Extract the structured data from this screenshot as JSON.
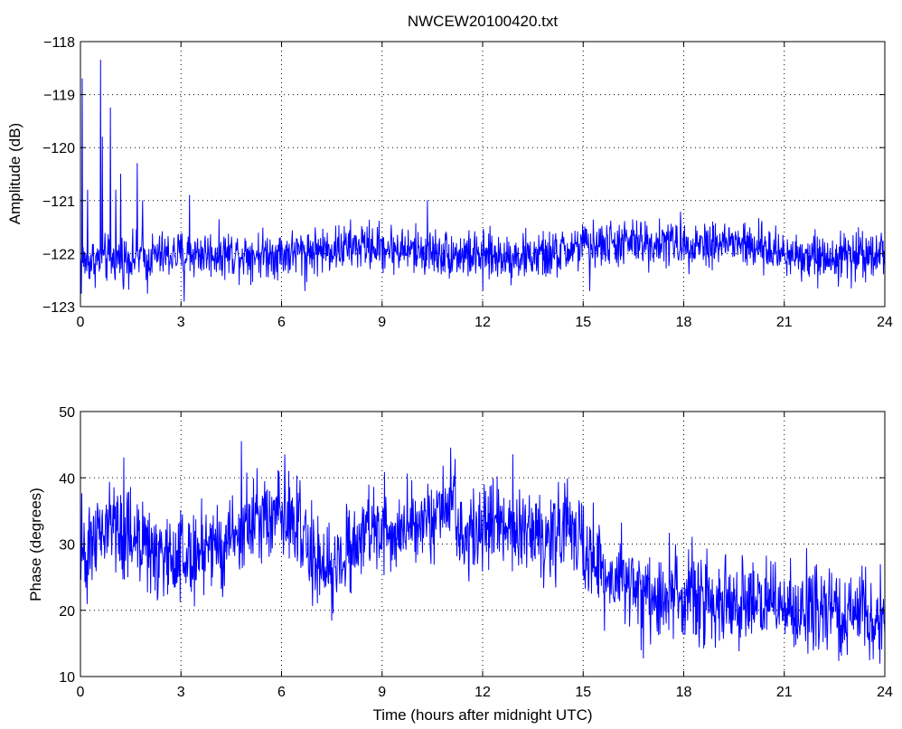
{
  "figure": {
    "background": "#ffffff",
    "line_color": "#0000ff"
  },
  "chart_data": [
    {
      "type": "line",
      "title": "NWCEW20100420.txt",
      "xlabel": "",
      "ylabel": "Amplitude (dB)",
      "xlim": [
        0,
        24
      ],
      "ylim": [
        -123,
        -118
      ],
      "xticks": [
        0,
        3,
        6,
        9,
        12,
        15,
        18,
        21,
        24
      ],
      "yticks": [
        -123,
        -122,
        -121,
        -120,
        -119,
        -118
      ],
      "ytick_labels": [
        "−123",
        "−122",
        "−121",
        "−120",
        "−119",
        "−118"
      ],
      "grid": true,
      "color": "#0000ff",
      "baseline_profile": {
        "x": [
          0,
          2,
          3.5,
          6,
          8.5,
          10,
          12,
          14,
          15,
          16.5,
          18,
          19.5,
          21,
          22.5,
          24
        ],
        "y": [
          -122.15,
          -122.05,
          -122.0,
          -122.0,
          -121.85,
          -121.95,
          -122.05,
          -122.05,
          -121.85,
          -121.8,
          -121.8,
          -121.8,
          -122.0,
          -122.05,
          -121.95
        ]
      },
      "noise_amplitude_db": 0.22,
      "spikes": [
        {
          "x": 0.05,
          "y": -118.7
        },
        {
          "x": 0.22,
          "y": -120.8
        },
        {
          "x": 0.6,
          "y": -118.35
        },
        {
          "x": 0.65,
          "y": -119.8
        },
        {
          "x": 0.9,
          "y": -119.25
        },
        {
          "x": 1.05,
          "y": -120.8
        },
        {
          "x": 1.2,
          "y": -120.5
        },
        {
          "x": 1.7,
          "y": -120.3
        },
        {
          "x": 1.85,
          "y": -121.0
        },
        {
          "x": 2.0,
          "y": -120.9
        },
        {
          "x": 3.25,
          "y": -120.9
        },
        {
          "x": 10.35,
          "y": -121.0
        }
      ],
      "dips": [
        {
          "x": 0.03,
          "y": -122.75
        },
        {
          "x": 1.3,
          "y": -122.6
        },
        {
          "x": 2.0,
          "y": -122.75
        },
        {
          "x": 3.1,
          "y": -122.9
        },
        {
          "x": 6.7,
          "y": -122.7
        },
        {
          "x": 12.0,
          "y": -122.7
        },
        {
          "x": 15.2,
          "y": -122.7
        },
        {
          "x": 22.0,
          "y": -122.65
        },
        {
          "x": 23.0,
          "y": -122.65
        }
      ]
    },
    {
      "type": "line",
      "title": "",
      "xlabel": "Time (hours after midnight UTC)",
      "ylabel": "Phase (degrees)",
      "xlim": [
        0,
        24
      ],
      "ylim": [
        10,
        50
      ],
      "xticks": [
        0,
        3,
        6,
        9,
        12,
        15,
        18,
        21,
        24
      ],
      "yticks": [
        10,
        20,
        30,
        40,
        50
      ],
      "ytick_labels": [
        "10",
        "20",
        "30",
        "40",
        "50"
      ],
      "grid": true,
      "color": "#0000ff",
      "baseline_profile": {
        "x": [
          0,
          1,
          2,
          3,
          4,
          5,
          6,
          6.8,
          7.5,
          8.5,
          9.5,
          10.5,
          11,
          11.5,
          12.5,
          13.5,
          14.5,
          15,
          15.5,
          16.5,
          18,
          19.5,
          21,
          22.5,
          24
        ],
        "y": [
          30,
          32,
          29,
          28,
          29,
          33,
          35,
          29,
          26,
          32,
          32,
          34,
          37,
          31,
          33,
          31,
          33,
          30,
          26,
          23,
          22,
          21.5,
          21,
          20,
          19
        ]
      },
      "noise_amplitude_deg": 3.2,
      "spikes": [
        {
          "x": 1.3,
          "y": 43
        },
        {
          "x": 4.8,
          "y": 45.5
        },
        {
          "x": 6.1,
          "y": 43.5
        },
        {
          "x": 11.05,
          "y": 44.5
        },
        {
          "x": 12.9,
          "y": 43.5
        }
      ],
      "dips": [
        {
          "x": 0.2,
          "y": 21
        },
        {
          "x": 7.5,
          "y": 18.5
        },
        {
          "x": 16.8,
          "y": 12.8
        },
        {
          "x": 21.7,
          "y": 13.5
        },
        {
          "x": 23.85,
          "y": 12.0
        }
      ]
    }
  ]
}
